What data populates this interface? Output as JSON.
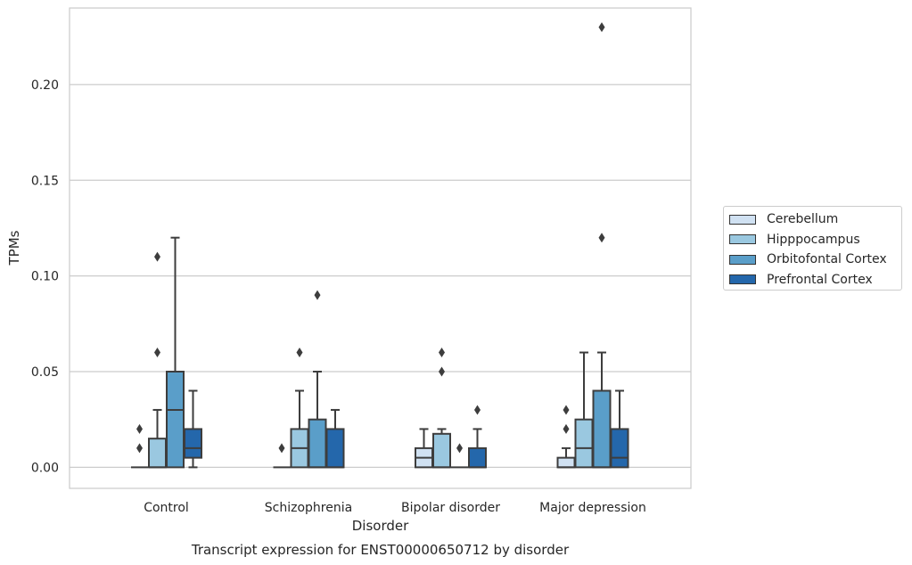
{
  "chart_data": {
    "type": "box",
    "title": "",
    "caption": "Transcript expression for ENST00000650712 by disorder",
    "xlabel": "Disorder",
    "ylabel": "TPMs",
    "ylim": [
      -0.011,
      0.24
    ],
    "yticks": [
      "0.00",
      "0.05",
      "0.10",
      "0.15",
      "0.20"
    ],
    "grid": true,
    "legend_position": "right",
    "categories": [
      "Control",
      "Schizophrenia",
      "Bipolar disorder",
      "Major depression"
    ],
    "series": [
      {
        "name": "Cerebellum",
        "color": "#d0e1f2",
        "boxes": [
          {
            "q1": 0.0,
            "median": 0.0,
            "q3": 0.0,
            "whislo": 0.0,
            "whishi": 0.0,
            "fliers": [
              0.01,
              0.02
            ]
          },
          {
            "q1": 0.0,
            "median": 0.0,
            "q3": 0.0,
            "whislo": 0.0,
            "whishi": 0.0,
            "fliers": [
              0.01
            ]
          },
          {
            "q1": 0.0,
            "median": 0.005,
            "q3": 0.01,
            "whislo": 0.0,
            "whishi": 0.02,
            "fliers": []
          },
          {
            "q1": 0.0,
            "median": 0.0,
            "q3": 0.005,
            "whislo": 0.0,
            "whishi": 0.01,
            "fliers": [
              0.02,
              0.03
            ]
          }
        ]
      },
      {
        "name": "Hipppocampus",
        "color": "#9ac8e0",
        "boxes": [
          {
            "q1": 0.0,
            "median": 0.0,
            "q3": 0.015,
            "whislo": 0.0,
            "whishi": 0.03,
            "fliers": [
              0.06,
              0.11
            ]
          },
          {
            "q1": 0.0,
            "median": 0.01,
            "q3": 0.02,
            "whislo": 0.0,
            "whishi": 0.04,
            "fliers": [
              0.06
            ]
          },
          {
            "q1": 0.0,
            "median": 0.0,
            "q3": 0.0175,
            "whislo": 0.0,
            "whishi": 0.02,
            "fliers": [
              0.05,
              0.06
            ]
          },
          {
            "q1": 0.0,
            "median": 0.01,
            "q3": 0.025,
            "whislo": 0.0,
            "whishi": 0.06,
            "fliers": []
          }
        ]
      },
      {
        "name": "Orbitofontal Cortex",
        "color": "#5a9ec9",
        "boxes": [
          {
            "q1": 0.0,
            "median": 0.03,
            "q3": 0.05,
            "whislo": 0.0,
            "whishi": 0.12,
            "fliers": []
          },
          {
            "q1": 0.0,
            "median": 0.0,
            "q3": 0.025,
            "whislo": 0.0,
            "whishi": 0.05,
            "fliers": [
              0.09
            ]
          },
          {
            "q1": 0.0,
            "median": 0.0,
            "q3": 0.0,
            "whislo": 0.0,
            "whishi": 0.0,
            "fliers": [
              0.01
            ]
          },
          {
            "q1": 0.0,
            "median": 0.0,
            "q3": 0.04,
            "whislo": 0.0,
            "whishi": 0.06,
            "fliers": [
              0.12,
              0.23
            ]
          }
        ]
      },
      {
        "name": "Prefrontal Cortex",
        "color": "#2467ab",
        "boxes": [
          {
            "q1": 0.005,
            "median": 0.01,
            "q3": 0.02,
            "whislo": 0.0,
            "whishi": 0.04,
            "fliers": []
          },
          {
            "q1": 0.0,
            "median": 0.0,
            "q3": 0.02,
            "whislo": 0.0,
            "whishi": 0.03,
            "fliers": []
          },
          {
            "q1": 0.0,
            "median": 0.0,
            "q3": 0.01,
            "whislo": 0.0,
            "whishi": 0.02,
            "fliers": [
              0.03
            ]
          },
          {
            "q1": 0.0,
            "median": 0.005,
            "q3": 0.02,
            "whislo": 0.0,
            "whishi": 0.04,
            "fliers": []
          }
        ]
      }
    ]
  }
}
